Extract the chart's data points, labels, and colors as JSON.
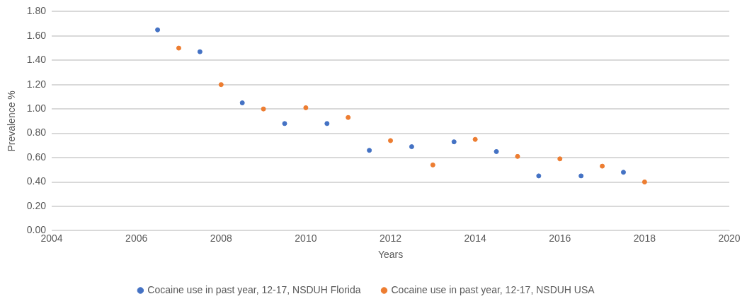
{
  "chart_data": {
    "type": "scatter",
    "xlabel": "Years",
    "ylabel": "Prevalence %",
    "xlim": [
      2004,
      2020
    ],
    "xticks": [
      2004,
      2006,
      2008,
      2010,
      2012,
      2014,
      2016,
      2018,
      2020
    ],
    "ylim": [
      0,
      1.8
    ],
    "yticks": [
      {
        "value": 0,
        "label": "0.00"
      },
      {
        "value": 0.2,
        "label": "0.20"
      },
      {
        "value": 0.4,
        "label": "0.40"
      },
      {
        "value": 0.6,
        "label": "0.60"
      },
      {
        "value": 0.8,
        "label": "0.80"
      },
      {
        "value": 1,
        "label": "1.00"
      },
      {
        "value": 1.2,
        "label": "1.20"
      },
      {
        "value": 1.4,
        "label": "1.40"
      },
      {
        "value": 1.6,
        "label": "1.60"
      },
      {
        "value": 1.8,
        "label": "1.80"
      }
    ],
    "grid": "y",
    "legend": "bottom",
    "marker": "circle",
    "series": [
      {
        "name": "Cocaine use in past year, 12-17, NSDUH Florida",
        "color": "#4472c4",
        "x": [
          2006.5,
          2007.5,
          2008.5,
          2009.5,
          2010.5,
          2011.5,
          2012.5,
          2013.5,
          2014.5,
          2015.5,
          2016.5,
          2017.5
        ],
        "values": [
          1.65,
          1.47,
          1.05,
          0.88,
          0.88,
          0.66,
          0.69,
          0.73,
          0.65,
          0.45,
          0.45,
          0.48
        ]
      },
      {
        "name": "Cocaine use in past year, 12-17, NSDUH USA",
        "color": "#ed7d31",
        "x": [
          2007,
          2008,
          2009,
          2010,
          2011,
          2012,
          2013,
          2014,
          2015,
          2016,
          2017,
          2018
        ],
        "values": [
          1.5,
          1.2,
          1.0,
          1.01,
          0.93,
          0.74,
          0.54,
          0.75,
          0.61,
          0.59,
          0.53,
          0.4
        ]
      }
    ]
  }
}
